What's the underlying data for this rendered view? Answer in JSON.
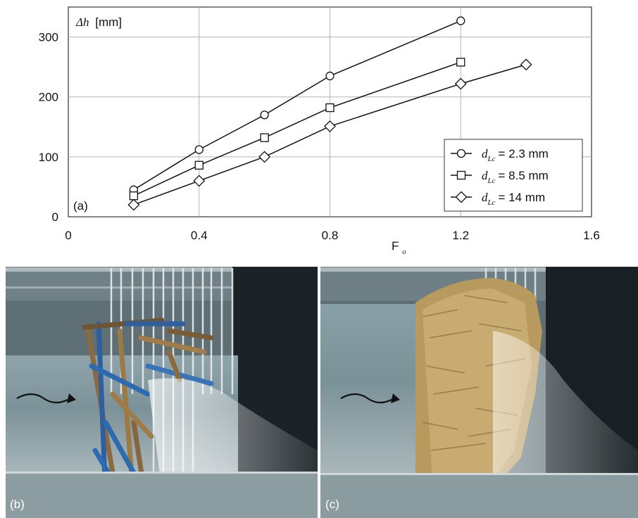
{
  "chart_data": {
    "type": "line",
    "panel_label": "(a)",
    "ylabel_symbol": "Δh",
    "ylabel_unit": "[mm]",
    "xlabel_main": "F",
    "xlabel_sub": "o",
    "xlim": [
      0,
      1.6
    ],
    "ylim": [
      0,
      350
    ],
    "xticks": [
      "0",
      "0.4",
      "0.8",
      "1.2",
      "1.6"
    ],
    "yticks": [
      "0",
      "100",
      "200",
      "300"
    ],
    "grid": true,
    "legend_position": "bottom-right",
    "series": [
      {
        "marker": "circle",
        "legend_var": "d",
        "legend_sub": "Lc",
        "legend_value": "= 2.3 mm",
        "x": [
          0.2,
          0.4,
          0.6,
          0.8,
          1.2
        ],
        "y": [
          45,
          112,
          170,
          235,
          327
        ]
      },
      {
        "marker": "square",
        "legend_var": "d",
        "legend_sub": "Lc",
        "legend_value": "= 8.5 mm",
        "x": [
          0.2,
          0.4,
          0.6,
          0.8,
          1.2
        ],
        "y": [
          35,
          86,
          132,
          182,
          258
        ]
      },
      {
        "marker": "diamond",
        "legend_var": "d",
        "legend_sub": "Lc",
        "legend_value": "= 14 mm",
        "x": [
          0.2,
          0.4,
          0.6,
          0.8,
          1.2,
          1.4
        ],
        "y": [
          20,
          60,
          100,
          151,
          222,
          254
        ]
      }
    ]
  },
  "photos": [
    {
      "label": "(b)",
      "icon": "flow-arrow-icon"
    },
    {
      "label": "(c)",
      "icon": "flow-arrow-icon"
    }
  ]
}
